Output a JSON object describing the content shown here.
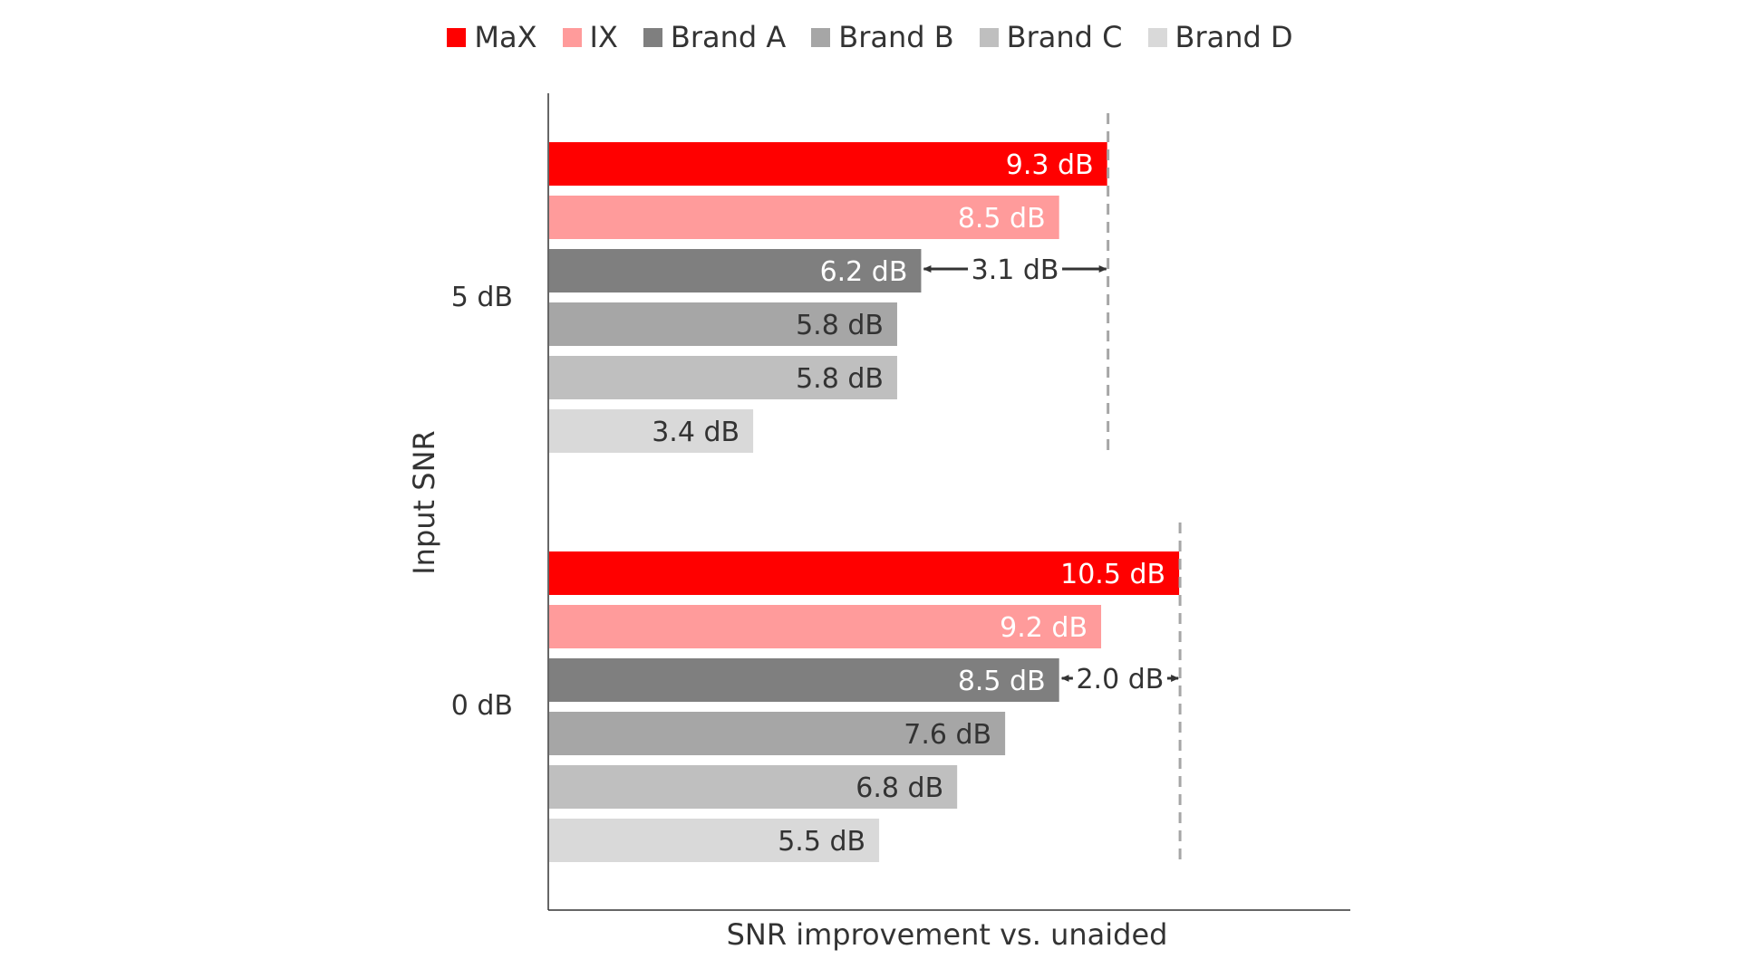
{
  "chart_data": {
    "type": "bar",
    "orientation": "horizontal",
    "ylabel": "Input SNR",
    "xlabel": "SNR improvement vs. unaided",
    "categories": [
      "5 dB",
      "0 dB"
    ],
    "series": [
      {
        "name": "MaX",
        "color": "#ff0000",
        "values": [
          9.3,
          10.5
        ],
        "labels": [
          "9.3 dB",
          "10.5 dB"
        ],
        "label_color": "#ffffff"
      },
      {
        "name": "IX",
        "color": "#ff9b9b",
        "values": [
          8.5,
          9.2
        ],
        "labels": [
          "8.5 dB",
          "9.2 dB"
        ],
        "label_color": "#ffffff"
      },
      {
        "name": "Brand A",
        "color": "#7f7f7f",
        "values": [
          6.2,
          8.5
        ],
        "labels": [
          "6.2 dB",
          "8.5 dB"
        ],
        "label_color": "#ffffff"
      },
      {
        "name": "Brand B",
        "color": "#a6a6a6",
        "values": [
          5.8,
          7.6
        ],
        "labels": [
          "5.8 dB",
          "7.6 dB"
        ],
        "label_color": "#333333"
      },
      {
        "name": "Brand C",
        "color": "#bfbfbf",
        "values": [
          5.8,
          6.8
        ],
        "labels": [
          "5.8 dB",
          "6.8 dB"
        ],
        "label_color": "#333333"
      },
      {
        "name": "Brand D",
        "color": "#d9d9d9",
        "values": [
          3.4,
          5.5
        ],
        "labels": [
          "3.4 dB",
          "5.5 dB"
        ],
        "label_color": "#333333"
      }
    ],
    "xlim": [
      0,
      12
    ],
    "grid": false,
    "legend_position": "top-center",
    "annotations": [
      {
        "category": "5 dB",
        "from_series": "Brand A",
        "to_series": "MaX",
        "text": "3.1 dB"
      },
      {
        "category": "0 dB",
        "from_series": "Brand A",
        "to_series": "MaX",
        "text": "2.0 dB"
      }
    ]
  }
}
